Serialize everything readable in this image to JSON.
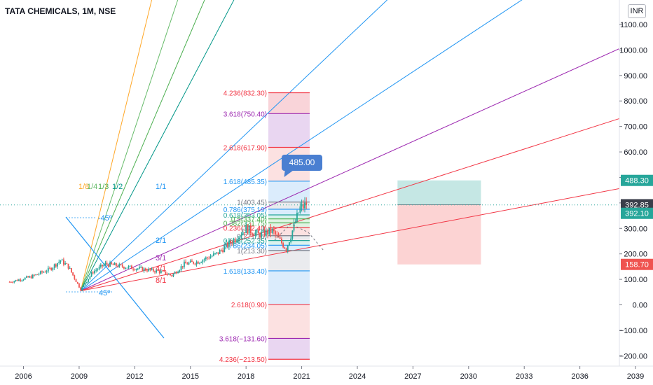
{
  "header": {
    "title": "TATA CHEMICALS, 1M, NSE",
    "currency": "INR"
  },
  "callout": {
    "text": "485.00"
  },
  "colors": {
    "up": "#26a69a",
    "down": "#ef5350",
    "axis_text": "#131722"
  },
  "chart_data": {
    "type": "candlestick",
    "y_axis": {
      "ticks": [
        1100,
        1000,
        900,
        800,
        700,
        600,
        500,
        400,
        300,
        200,
        100,
        0,
        -100,
        -200
      ],
      "tick_labels": [
        "1100.00",
        "1000.00",
        "900.00",
        "800.00",
        "700.00",
        "600.00",
        "500.00",
        "400.00",
        "300.00",
        "200.00",
        "100.00",
        "0.00",
        "−100.00",
        "−200.00"
      ],
      "range": [
        -230,
        1210
      ]
    },
    "x_axis": {
      "tick_labels": [
        "2006",
        "2009",
        "2012",
        "2015",
        "2018",
        "2021",
        "2024",
        "2027",
        "2030",
        "2033",
        "2036",
        "2039"
      ],
      "range_years": [
        2005.3,
        2040.0
      ]
    },
    "price_labels": [
      {
        "text": "488.30",
        "value": 488.3,
        "bg": "#26a69a"
      },
      {
        "text": "392.85",
        "value": 392.85,
        "bg": "#3a3e4a"
      },
      {
        "text": "392.10",
        "value": 392.1,
        "bg": "#26a69a"
      },
      {
        "text": "158.70",
        "value": 158.7,
        "bg": "#ef5350"
      }
    ],
    "last_price": 392.1,
    "price_series": {
      "date_range": [
        "2005-04",
        "2021-04"
      ],
      "description": "monthly OHLC, approximate",
      "close_approx": [
        {
          "date": "2005-04",
          "value": 90
        },
        {
          "date": "2006-06",
          "value": 110
        },
        {
          "date": "2007-06",
          "value": 140
        },
        {
          "date": "2008-01",
          "value": 175
        },
        {
          "date": "2008-06",
          "value": 150
        },
        {
          "date": "2009-02",
          "value": 60
        },
        {
          "date": "2009-10",
          "value": 130
        },
        {
          "date": "2010-06",
          "value": 160
        },
        {
          "date": "2011-06",
          "value": 150
        },
        {
          "date": "2012-06",
          "value": 140
        },
        {
          "date": "2013-06",
          "value": 130
        },
        {
          "date": "2014-01",
          "value": 115
        },
        {
          "date": "2014-09",
          "value": 160
        },
        {
          "date": "2015-06",
          "value": 170
        },
        {
          "date": "2016-06",
          "value": 200
        },
        {
          "date": "2017-06",
          "value": 260
        },
        {
          "date": "2018-01",
          "value": 300
        },
        {
          "date": "2018-09",
          "value": 275
        },
        {
          "date": "2019-06",
          "value": 290
        },
        {
          "date": "2020-03",
          "value": 220
        },
        {
          "date": "2020-12",
          "value": 380
        },
        {
          "date": "2021-04",
          "value": 392
        }
      ]
    },
    "gann_fan": {
      "origin": {
        "date": "2009-02",
        "value": 55
      },
      "labels": [
        "1/8",
        "1/4",
        "1/3",
        "1/2",
        "1/1",
        "2/1",
        "3/1",
        "4/1",
        "8/1"
      ],
      "angle_labels": [
        "-45º",
        "45º"
      ]
    },
    "fib_extension_left": [
      {
        "label": "4.236(832.30)",
        "value": 832.3,
        "color": "#f23645"
      },
      {
        "label": "3.618(750.40)",
        "value": 750.4,
        "color": "#9c27b0"
      },
      {
        "label": "2.618(617.90)",
        "value": 617.9,
        "color": "#f23645"
      },
      {
        "label": "1.618(485.35)",
        "value": 485.35,
        "color": "#2196f3"
      },
      {
        "label": "1(403.45)",
        "value": 403.45,
        "color": "#787b86"
      },
      {
        "label": "0.786(375.19)",
        "value": 375.19,
        "color": "#2196f3"
      },
      {
        "label": "0.618(353.05)",
        "value": 353.05,
        "color": "#26a69a"
      },
      {
        "label": "0.5(337.40)",
        "value": 337.4,
        "color": "#4caf50"
      },
      {
        "label": "0.382(321.75)",
        "value": 321.75,
        "color": "#4caf50"
      },
      {
        "label": "0.236(302.40)",
        "value": 302.4,
        "color": "#f23645"
      },
      {
        "label": "0(271.15)",
        "value": 271.15,
        "color": "#787b86"
      },
      {
        "label": "0.618(252.35)",
        "value": 252.35,
        "color": "#26a69a"
      },
      {
        "label": "0.786(234.05)",
        "value": 234.05,
        "color": "#2196f3"
      },
      {
        "label": "1(213.30)",
        "value": 213.3,
        "color": "#787b86"
      },
      {
        "label": "1.618(133.40)",
        "value": 133.4,
        "color": "#2196f3"
      },
      {
        "label": "2.618(0.90)",
        "value": 0.9,
        "color": "#f23645"
      },
      {
        "label": "3.618(−131.60)",
        "value": -131.6,
        "color": "#9c27b0"
      },
      {
        "label": "4.236(−213.50)",
        "value": -213.5,
        "color": "#f23645"
      }
    ],
    "position_tool": {
      "target": 488.3,
      "entry": 392.85,
      "stop": 158.7,
      "start": "2026-03",
      "end": "2030-09"
    }
  }
}
